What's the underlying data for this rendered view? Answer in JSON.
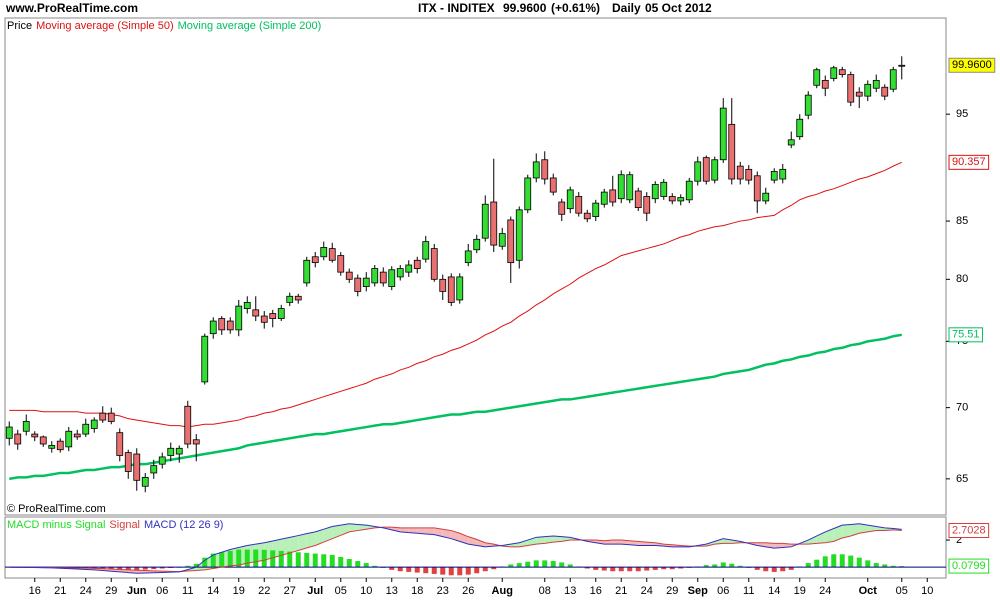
{
  "header": {
    "site": "www.ProRealTime.com",
    "instrument": "ITX - INDITEX",
    "last": "99.9600",
    "change": "(+0.61%)",
    "period": "Daily",
    "date": "05 Oct 2012"
  },
  "chart_data": [
    {
      "type": "candlestick",
      "legend_title": "Price",
      "watermark": "© ProRealTime.com",
      "categories": [
        null,
        null,
        null,
        "16",
        null,
        null,
        "21",
        null,
        null,
        "24",
        null,
        null,
        "29",
        null,
        null,
        "Jun",
        null,
        null,
        "06",
        null,
        null,
        "11",
        null,
        null,
        "14",
        null,
        null,
        "19",
        null,
        null,
        "22",
        null,
        null,
        "27",
        null,
        null,
        "Jul",
        null,
        null,
        "05",
        null,
        null,
        "10",
        null,
        null,
        "13",
        null,
        null,
        "18",
        null,
        null,
        "23",
        null,
        null,
        "26",
        null,
        null,
        null,
        "Aug",
        null,
        null,
        null,
        null,
        "08",
        null,
        null,
        "13",
        null,
        null,
        "16",
        null,
        null,
        "21",
        null,
        null,
        "24",
        null,
        null,
        "29",
        null,
        null,
        "Sep",
        null,
        null,
        "06",
        null,
        null,
        "11",
        null,
        null,
        "14",
        null,
        null,
        "19",
        null,
        null,
        "24",
        null,
        null,
        null,
        null,
        "Oct",
        null,
        null,
        null,
        "05",
        null,
        null,
        "10",
        null
      ],
      "open": [
        67.8,
        68.1,
        68.3,
        68.1,
        67.9,
        67.1,
        67.6,
        67.2,
        68.1,
        68.1,
        68.5,
        69.6,
        69.6,
        68.2,
        66.8,
        66.7,
        64.5,
        65.4,
        66.0,
        66.6,
        66.7,
        70.1,
        67.7,
        71.9,
        75.6,
        76.8,
        76.6,
        75.9,
        77.6,
        77.5,
        77.0,
        77.2,
        76.8,
        78.1,
        78.6,
        79.7,
        81.9,
        81.9,
        82.6,
        82.0,
        80.6,
        80.1,
        79.4,
        79.7,
        80.6,
        79.4,
        80.2,
        80.6,
        81.6,
        81.7,
        82.6,
        80.0,
        80.2,
        78.3,
        81.4,
        82.5,
        83.5,
        86.7,
        82.8,
        85.1,
        81.6,
        86.0,
        88.9,
        90.6,
        88.9,
        86.7,
        86.1,
        87.2,
        85.7,
        85.4,
        86.5,
        87.8,
        87.0,
        86.9,
        87.7,
        87.2,
        87.0,
        87.2,
        87.2,
        86.8,
        86.9,
        88.6,
        90.8,
        88.7,
        90.6,
        94.0,
        90.0,
        89.7,
        89.1,
        86.8,
        88.7,
        88.8,
        92.0,
        92.8,
        94.9,
        97.9,
        98.4,
        98.6,
        99.5,
        99.0,
        97.2,
        96.8,
        97.6,
        97.7,
        97.5,
        99.9,
        null,
        null,
        null,
        null
      ],
      "high": [
        69.0,
        68.4,
        69.5,
        68.3,
        68.0,
        67.6,
        67.8,
        68.6,
        68.4,
        69.2,
        69.3,
        70.1,
        70.0,
        68.5,
        67.0,
        67.1,
        65.4,
        66.3,
        66.8,
        67.5,
        67.3,
        70.5,
        68.1,
        75.6,
        76.9,
        77.0,
        76.9,
        78.3,
        78.6,
        78.6,
        77.4,
        77.5,
        77.9,
        78.9,
        78.8,
        81.9,
        82.3,
        83.2,
        83.1,
        82.3,
        80.9,
        80.4,
        80.6,
        81.2,
        81.0,
        81.1,
        81.2,
        81.6,
        81.9,
        83.7,
        83.0,
        80.4,
        80.5,
        80.5,
        83.0,
        83.8,
        87.3,
        90.7,
        84.4,
        85.4,
        86.3,
        89.2,
        91.2,
        91.4,
        89.3,
        87.0,
        88.1,
        87.6,
        86.0,
        86.9,
        87.9,
        89.1,
        89.6,
        89.5,
        88.0,
        87.6,
        88.6,
        88.8,
        87.5,
        87.4,
        88.9,
        90.9,
        91.0,
        90.9,
        96.6,
        96.6,
        90.4,
        90.1,
        89.5,
        88.0,
        89.8,
        90.2,
        93.3,
        95.0,
        97.3,
        99.7,
        98.9,
        99.9,
        99.8,
        99.3,
        97.7,
        98.4,
        99.0,
        98.0,
        99.8,
        100.9,
        null,
        null,
        null,
        null
      ],
      "low": [
        67.3,
        67.0,
        68.0,
        67.6,
        67.2,
        66.8,
        66.8,
        66.9,
        67.7,
        67.9,
        68.2,
        68.9,
        68.8,
        66.2,
        65.0,
        64.2,
        64.1,
        65.0,
        65.7,
        66.2,
        66.1,
        67.1,
        66.2,
        71.7,
        75.2,
        75.5,
        75.6,
        75.4,
        77.2,
        76.6,
        76.0,
        76.1,
        76.6,
        77.8,
        78.0,
        79.4,
        81.0,
        81.6,
        81.4,
        80.3,
        79.7,
        78.6,
        79.0,
        79.4,
        79.4,
        79.1,
        79.9,
        80.2,
        80.5,
        81.4,
        79.8,
        78.3,
        77.8,
        78.0,
        81.1,
        82.2,
        83.2,
        82.3,
        82.5,
        79.7,
        80.9,
        85.7,
        88.5,
        88.3,
        87.3,
        85.0,
        85.7,
        85.4,
        84.9,
        85.0,
        86.2,
        86.3,
        86.6,
        86.6,
        85.9,
        85.0,
        86.6,
        86.9,
        86.5,
        86.4,
        86.6,
        88.2,
        88.3,
        88.4,
        90.3,
        88.3,
        88.3,
        88.3,
        85.7,
        86.5,
        88.4,
        88.4,
        91.7,
        92.5,
        94.5,
        97.6,
        96.8,
        98.3,
        98.7,
        95.8,
        95.6,
        96.3,
        97.2,
        96.4,
        97.2,
        98.5,
        null,
        null,
        null,
        null
      ],
      "close": [
        68.6,
        67.4,
        69.0,
        67.9,
        67.4,
        67.3,
        67.0,
        68.3,
        67.9,
        68.8,
        69.1,
        69.1,
        69.0,
        66.6,
        65.5,
        64.9,
        65.1,
        65.9,
        66.5,
        67.1,
        67.1,
        67.4,
        67.4,
        75.4,
        76.6,
        75.9,
        75.9,
        77.8,
        78.1,
        77.0,
        76.5,
        76.8,
        77.6,
        78.6,
        78.3,
        81.6,
        81.4,
        82.7,
        81.6,
        80.6,
        80.0,
        79.0,
        80.1,
        80.9,
        79.7,
        80.8,
        80.9,
        81.2,
        80.9,
        83.2,
        80.0,
        79.0,
        78.1,
        80.2,
        82.4,
        83.4,
        86.5,
        82.9,
        83.9,
        81.4,
        86.0,
        88.9,
        90.4,
        88.8,
        87.6,
        85.6,
        87.8,
        85.7,
        85.2,
        86.6,
        87.6,
        86.7,
        89.2,
        89.2,
        86.2,
        85.7,
        88.3,
        88.5,
        86.8,
        87.1,
        88.6,
        90.4,
        88.6,
        90.6,
        95.6,
        88.8,
        88.8,
        88.7,
        86.8,
        87.5,
        89.5,
        89.7,
        92.5,
        94.5,
        96.9,
        99.5,
        97.6,
        99.7,
        99.0,
        96.2,
        96.8,
        98.0,
        98.4,
        96.8,
        99.5,
        99.96,
        null,
        null,
        null,
        null
      ],
      "close_label": "99.9600",
      "up_color": "#33dd33",
      "down_color": "#e87070",
      "outline_color": "#000000",
      "ylim": [
        62.6,
        105
      ],
      "log_scale": true,
      "yticks": [
        65,
        70,
        75,
        80,
        85,
        95
      ],
      "series": [
        {
          "name": "Moving average (Simple 50)",
          "color": "#dd1111",
          "width": 1,
          "last_label": "90.357",
          "values": [
            69.8,
            69.8,
            69.8,
            69.8,
            69.7,
            69.7,
            69.7,
            69.7,
            69.7,
            69.6,
            69.6,
            69.6,
            69.5,
            69.4,
            69.2,
            69.1,
            69.0,
            68.9,
            68.8,
            68.7,
            68.7,
            68.6,
            68.7,
            68.8,
            68.8,
            68.9,
            69.0,
            69.1,
            69.3,
            69.4,
            69.6,
            69.7,
            69.9,
            70.0,
            70.2,
            70.4,
            70.6,
            70.8,
            71.0,
            71.2,
            71.4,
            71.6,
            71.8,
            72.1,
            72.3,
            72.5,
            72.8,
            73.0,
            73.3,
            73.5,
            73.8,
            74.0,
            74.3,
            74.5,
            74.8,
            75.1,
            75.5,
            75.8,
            76.2,
            76.5,
            77.0,
            77.4,
            77.9,
            78.3,
            78.8,
            79.2,
            79.6,
            80.1,
            80.5,
            80.9,
            81.2,
            81.6,
            82.0,
            82.2,
            82.4,
            82.6,
            82.8,
            83.0,
            83.3,
            83.6,
            83.8,
            84.1,
            84.3,
            84.5,
            84.6,
            84.8,
            85.0,
            85.1,
            85.3,
            85.4,
            85.5,
            86.0,
            86.4,
            86.9,
            87.2,
            87.4,
            87.7,
            87.9,
            88.2,
            88.5,
            88.8,
            89.0,
            89.3,
            89.6,
            90.0,
            90.357,
            null,
            null,
            null,
            null
          ]
        },
        {
          "name": "Moving average (Simple 200)",
          "color": "#00c060",
          "width": 2.5,
          "last_label": "75.51",
          "values": [
            65.0,
            65.1,
            65.1,
            65.2,
            65.2,
            65.3,
            65.4,
            65.4,
            65.5,
            65.6,
            65.6,
            65.7,
            65.8,
            65.8,
            65.9,
            66.0,
            66.0,
            66.1,
            66.2,
            66.3,
            66.4,
            66.5,
            66.6,
            66.7,
            66.8,
            66.9,
            67.0,
            67.1,
            67.3,
            67.4,
            67.5,
            67.6,
            67.7,
            67.8,
            67.9,
            68.0,
            68.1,
            68.1,
            68.2,
            68.3,
            68.4,
            68.5,
            68.6,
            68.7,
            68.8,
            68.8,
            68.9,
            69.0,
            69.1,
            69.2,
            69.3,
            69.4,
            69.5,
            69.5,
            69.6,
            69.7,
            69.7,
            69.8,
            69.9,
            70.0,
            70.1,
            70.2,
            70.3,
            70.4,
            70.5,
            70.6,
            70.6,
            70.7,
            70.8,
            70.9,
            71.0,
            71.1,
            71.2,
            71.3,
            71.4,
            71.5,
            71.6,
            71.7,
            71.8,
            71.9,
            72.0,
            72.1,
            72.2,
            72.3,
            72.5,
            72.6,
            72.7,
            72.8,
            73.0,
            73.2,
            73.3,
            73.5,
            73.6,
            73.8,
            73.9,
            74.1,
            74.2,
            74.4,
            74.5,
            74.7,
            74.8,
            75.0,
            75.1,
            75.2,
            75.4,
            75.51,
            null,
            null,
            null,
            null
          ]
        }
      ]
    },
    {
      "type": "macd",
      "ylim": [
        -0.8,
        3.7
      ],
      "yticks": [
        2
      ],
      "fill_up_color": "#b8f0b8",
      "fill_down_color": "#f4b8b8",
      "zero_color": "#000080",
      "series": [
        {
          "name": "MACD minus Signal",
          "type": "bar",
          "color": "#22dd22",
          "negative_color": "#e04040",
          "last_label": "0.0799",
          "values": [
            0.02,
            0.02,
            0.01,
            0,
            -0.01,
            -0.02,
            -0.04,
            -0.06,
            -0.08,
            -0.1,
            -0.12,
            -0.14,
            -0.16,
            -0.18,
            -0.2,
            -0.22,
            -0.18,
            -0.14,
            -0.1,
            -0.06,
            -0.02,
            0.1,
            0.25,
            0.7,
            1.0,
            1.1,
            1.2,
            1.3,
            1.3,
            1.3,
            1.28,
            1.24,
            1.2,
            1.15,
            1.1,
            1.05,
            1.0,
            0.95,
            0.9,
            0.75,
            0.6,
            0.45,
            0.3,
            0.1,
            -0.05,
            -0.2,
            -0.3,
            -0.35,
            -0.4,
            -0.45,
            -0.5,
            -0.55,
            -0.6,
            -0.6,
            -0.55,
            -0.45,
            -0.3,
            -0.15,
            0.05,
            0.2,
            0.3,
            0.4,
            0.5,
            0.5,
            0.45,
            0.35,
            0.2,
            0.05,
            -0.1,
            -0.2,
            -0.25,
            -0.3,
            -0.3,
            -0.3,
            -0.3,
            -0.25,
            -0.2,
            -0.15,
            -0.15,
            -0.1,
            -0.05,
            0.05,
            0.15,
            0.2,
            0.35,
            0.25,
            0.1,
            -0.05,
            -0.2,
            -0.3,
            -0.35,
            -0.3,
            -0.2,
            0.05,
            0.3,
            0.55,
            0.8,
            0.95,
            0.95,
            0.85,
            0.7,
            0.5,
            0.3,
            0.2,
            0.1,
            0.0799,
            null,
            null,
            null,
            null
          ]
        },
        {
          "name": "Signal",
          "type": "line",
          "color": "#d04040",
          "last_label": "2.7028",
          "values": [
            -0.02,
            -0.03,
            -0.03,
            -0.03,
            -0.03,
            -0.03,
            -0.04,
            -0.05,
            -0.06,
            -0.07,
            -0.08,
            -0.11,
            -0.14,
            -0.17,
            -0.2,
            -0.23,
            -0.25,
            -0.27,
            -0.29,
            -0.31,
            -0.33,
            -0.28,
            -0.25,
            -0.2,
            -0.1,
            0.0,
            0.1,
            0.15,
            0.3,
            0.4,
            0.52,
            0.69,
            0.87,
            1.05,
            1.23,
            1.42,
            1.6,
            1.85,
            2.1,
            2.35,
            2.6,
            2.7,
            2.8,
            2.9,
            2.95,
            2.95,
            2.9,
            2.9,
            2.9,
            2.9,
            2.9,
            2.8,
            2.7,
            2.5,
            2.25,
            2.05,
            1.8,
            1.7,
            1.55,
            1.5,
            1.5,
            1.6,
            1.7,
            1.75,
            1.85,
            1.9,
            2.0,
            2.0,
            2.0,
            2.0,
            1.95,
            2.0,
            2.0,
            1.95,
            1.9,
            1.85,
            1.8,
            1.7,
            1.65,
            1.6,
            1.55,
            1.55,
            1.55,
            1.7,
            1.75,
            1.75,
            1.8,
            1.8,
            1.8,
            1.8,
            1.75,
            1.75,
            1.7,
            1.7,
            1.7,
            1.75,
            1.8,
            1.9,
            2.15,
            2.3,
            2.5,
            2.6,
            2.7,
            2.7,
            2.75,
            2.7028,
            null,
            null,
            null,
            null
          ]
        },
        {
          "name": "MACD (12 26 9)",
          "type": "line",
          "color": "#3030c0",
          "values": [
            0.0,
            -0.01,
            -0.02,
            -0.03,
            -0.04,
            -0.05,
            -0.08,
            -0.11,
            -0.14,
            -0.17,
            -0.2,
            -0.25,
            -0.3,
            -0.35,
            -0.4,
            -0.45,
            -0.43,
            -0.41,
            -0.39,
            -0.37,
            -0.35,
            -0.18,
            0.0,
            0.5,
            0.9,
            1.1,
            1.3,
            1.45,
            1.6,
            1.7,
            1.8,
            1.93,
            2.07,
            2.2,
            2.33,
            2.47,
            2.6,
            2.8,
            3.0,
            3.1,
            3.2,
            3.15,
            3.1,
            3.0,
            2.9,
            2.75,
            2.6,
            2.55,
            2.5,
            2.45,
            2.4,
            2.25,
            2.1,
            1.9,
            1.7,
            1.6,
            1.5,
            1.55,
            1.6,
            1.7,
            1.8,
            2.0,
            2.2,
            2.25,
            2.3,
            2.25,
            2.2,
            2.05,
            1.9,
            1.8,
            1.7,
            1.7,
            1.7,
            1.65,
            1.6,
            1.6,
            1.6,
            1.55,
            1.5,
            1.5,
            1.5,
            1.6,
            1.7,
            1.9,
            2.1,
            2.0,
            1.9,
            1.75,
            1.6,
            1.5,
            1.4,
            1.45,
            1.5,
            1.75,
            2.0,
            2.3,
            2.6,
            2.85,
            3.1,
            3.15,
            3.2,
            3.1,
            3.0,
            2.9,
            2.85,
            2.7827,
            null,
            null,
            null,
            null
          ]
        }
      ]
    }
  ]
}
